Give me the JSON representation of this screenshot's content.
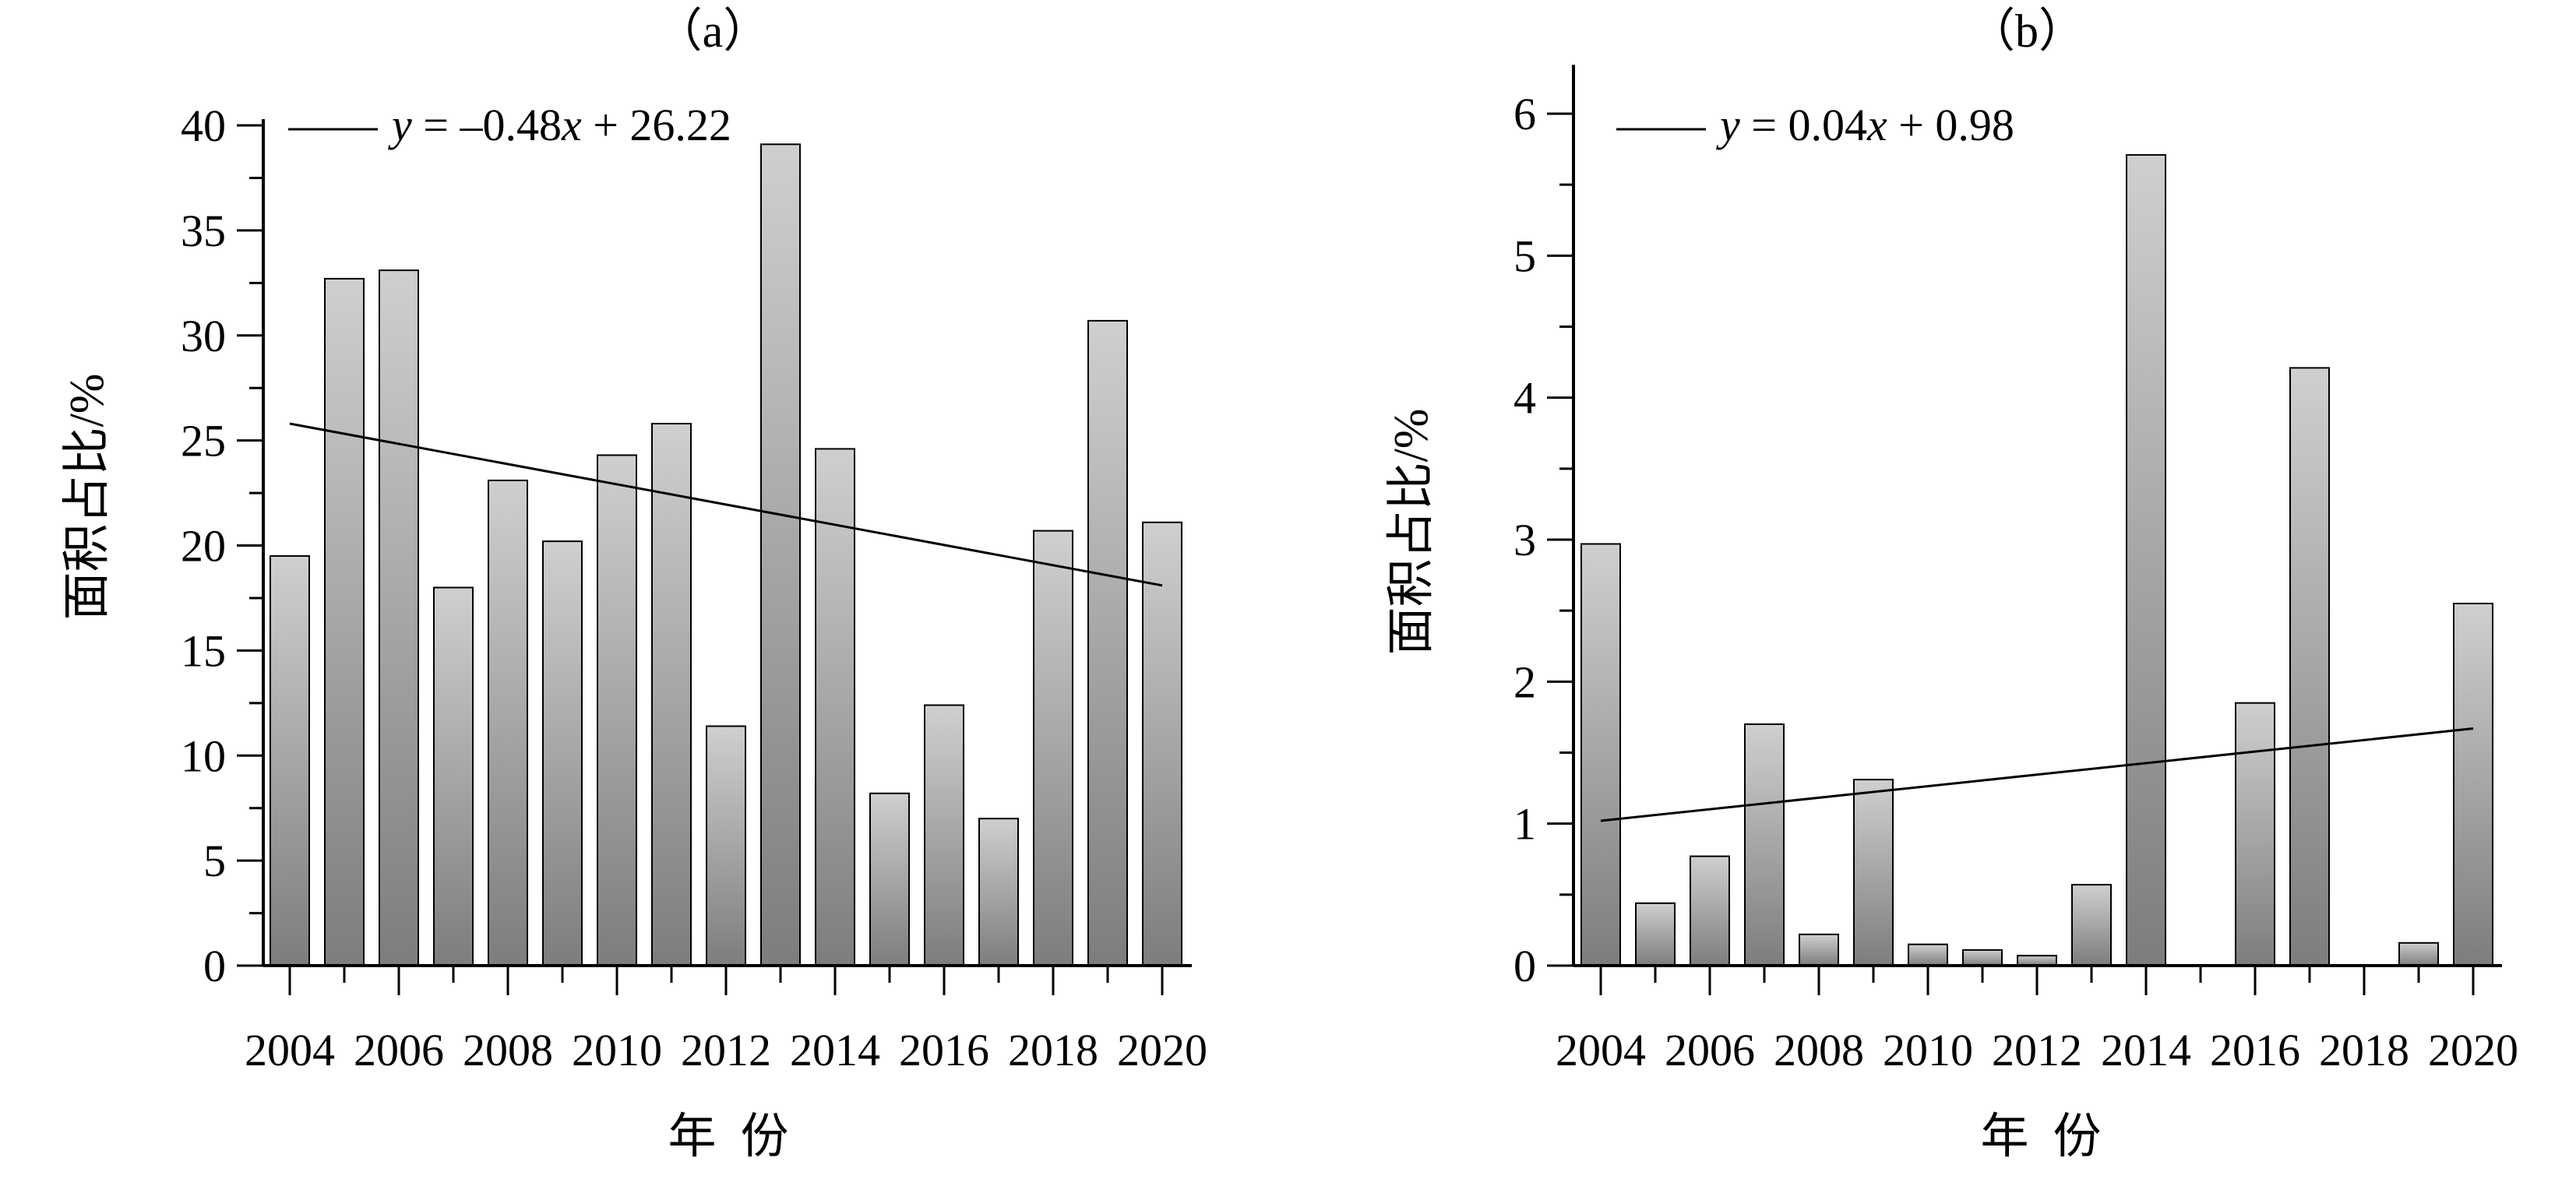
{
  "chart_data": [
    {
      "type": "bar",
      "panel_label": "（a）",
      "ylabel": "面积占比/%",
      "xlabel": "年  份",
      "ylim": [
        0,
        40
      ],
      "y_ticks": [
        "0",
        "5",
        "10",
        "15",
        "20",
        "25",
        "30",
        "35",
        "40"
      ],
      "x_tick_labels": [
        "2004",
        "2006",
        "2008",
        "2010",
        "2012",
        "2014",
        "2016",
        "2018",
        "2020"
      ],
      "categories": [
        "2004",
        "2005",
        "2006",
        "2007",
        "2008",
        "2009",
        "2010",
        "2011",
        "2012",
        "2013",
        "2014",
        "2015",
        "2016",
        "2017",
        "2018",
        "2019",
        "2020"
      ],
      "values": [
        19.5,
        32.7,
        33.1,
        18.0,
        23.1,
        20.2,
        24.3,
        25.8,
        11.4,
        39.1,
        24.6,
        8.2,
        12.4,
        7.0,
        20.7,
        30.7,
        21.1
      ],
      "trend": {
        "label_y": "y",
        "label_rest": " = –0.48",
        "label_x": "x",
        "label_tail": " + 26.22",
        "start": 25.8,
        "end": 18.1
      },
      "legend_position": "top-left",
      "grid": false
    },
    {
      "type": "bar",
      "panel_label": "（b）",
      "ylabel": "面积占比/%",
      "xlabel": "年  份",
      "ylim": [
        0,
        6.3
      ],
      "y_ticks": [
        "0",
        "1",
        "2",
        "3",
        "4",
        "5",
        "6"
      ],
      "x_tick_labels": [
        "2004",
        "2006",
        "2008",
        "2010",
        "2012",
        "2014",
        "2016",
        "2018",
        "2020"
      ],
      "categories": [
        "2004",
        "2005",
        "2006",
        "2007",
        "2008",
        "2009",
        "2010",
        "2011",
        "2012",
        "2013",
        "2014",
        "2015",
        "2016",
        "2017",
        "2018",
        "2019",
        "2020"
      ],
      "values": [
        2.97,
        0.44,
        0.77,
        1.7,
        0.22,
        1.31,
        0.15,
        0.11,
        0.07,
        0.57,
        5.71,
        0,
        1.85,
        4.21,
        0,
        0.16,
        2.55
      ],
      "trend": {
        "label_y": "y",
        "label_rest": " = 0.04",
        "label_x": "x",
        "label_tail": " + 0.98",
        "start": 1.02,
        "end": 1.67
      },
      "legend_position": "top-left",
      "grid": false
    }
  ]
}
